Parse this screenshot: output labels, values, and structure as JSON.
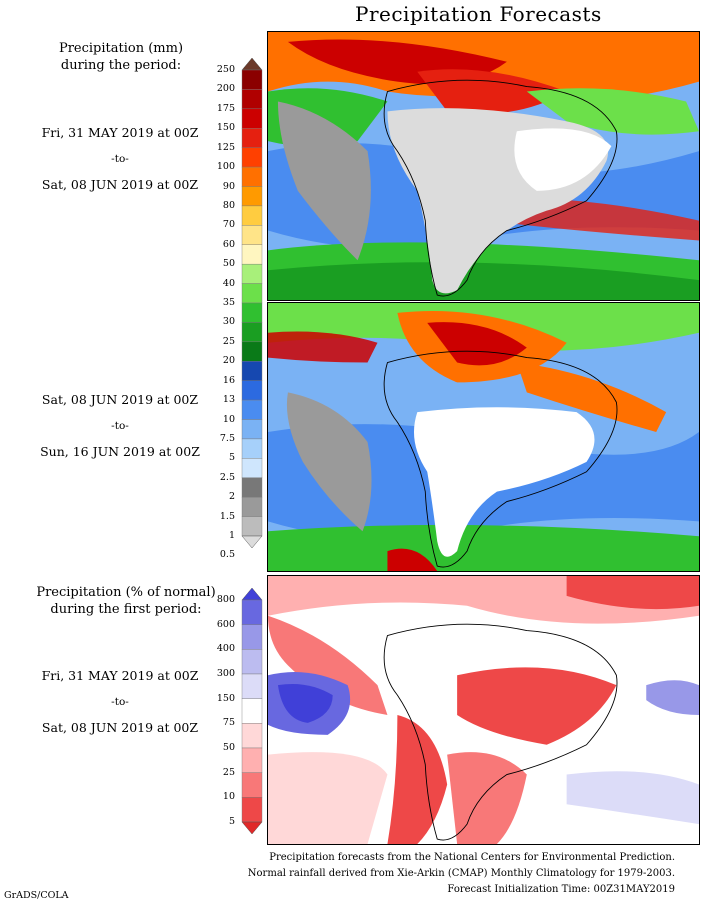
{
  "title": "Precipitation Forecasts",
  "panel1": {
    "header_line1": "Precipitation (mm)",
    "header_line2": "during the period:",
    "start": "Fri, 31 MAY 2019 at 00Z",
    "sep": "-to-",
    "end": "Sat, 08 JUN 2019 at 00Z"
  },
  "panel2": {
    "start": "Sat, 08 JUN 2019 at 00Z",
    "sep": "-to-",
    "end": "Sun, 16 JUN 2019 at 00Z"
  },
  "panel3": {
    "header_line1": "Precipitation (% of normal)",
    "header_line2": "during the first period:",
    "start": "Fri, 31 MAY 2019 at 00Z",
    "sep": "-to-",
    "end": "Sat, 08 JUN 2019 at 00Z"
  },
  "precip_scale": {
    "labels": [
      "250",
      "200",
      "175",
      "150",
      "125",
      "100",
      "90",
      "80",
      "70",
      "60",
      "50",
      "40",
      "35",
      "30",
      "25",
      "20",
      "16",
      "13",
      "10",
      "7.5",
      "5",
      "2.5",
      "2",
      "1.5",
      "1",
      "0.5"
    ],
    "colors": [
      "#6b3a2a",
      "#8b0000",
      "#b00000",
      "#cc0000",
      "#e52010",
      "#ff4000",
      "#ff7000",
      "#ff9a00",
      "#ffcc40",
      "#ffe488",
      "#fff6c0",
      "#a8f07a",
      "#6ce04a",
      "#30c030",
      "#1a9e22",
      "#0a7a18",
      "#1648b0",
      "#2c6ae0",
      "#4a8cf0",
      "#7ab2f4",
      "#a6d0fa",
      "#cfe6fd",
      "#787878",
      "#9a9a9a",
      "#bcbcbc",
      "#dcdcdc"
    ]
  },
  "pct_scale": {
    "labels": [
      "800",
      "600",
      "400",
      "300",
      "150",
      "75",
      "50",
      "25",
      "10",
      "5"
    ],
    "colors": [
      "#4040d8",
      "#6868e0",
      "#9898e8",
      "#bcbcf0",
      "#dcdcf8",
      "#ffffff",
      "#ffd8d8",
      "#ffb0b0",
      "#f87878",
      "#ee4848",
      "#e02828"
    ]
  },
  "footer": {
    "line1": "Precipitation forecasts from the National Centers for Environmental Prediction.",
    "line2": "Normal rainfall derived from Xie-Arkin (CMAP) Monthly Climatology for 1979-2003.",
    "line3": "Forecast Initialization Time: 00Z31MAY2019"
  },
  "credit": "GrADS/COLA"
}
